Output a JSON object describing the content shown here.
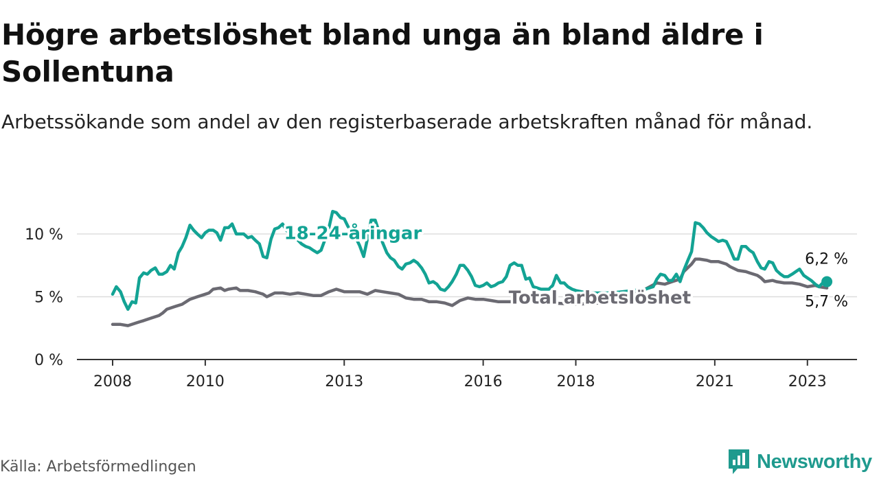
{
  "header": {
    "title": "Högre arbetslöshet bland unga än bland äldre i Sollentuna",
    "subtitle": "Arbetssökande som andel av den registerbaserade arbetskraften månad för månad."
  },
  "footer": {
    "source": "Källa: Arbetsförmedlingen",
    "brand": "Newsworthy"
  },
  "colors": {
    "youth": "#13a394",
    "total": "#6b6a72",
    "grid": "#dddddd",
    "axis": "#333333",
    "brand": "#1f9a8e"
  },
  "chart_data": {
    "type": "line",
    "title": "Högre arbetslöshet bland unga än bland äldre i Sollentuna",
    "xlabel": "",
    "ylabel": "",
    "ylim": [
      0,
      12
    ],
    "xlim": [
      2008.0,
      2023.3
    ],
    "yticks": [
      0,
      5,
      10
    ],
    "ytick_labels": [
      "0 %",
      "5 %",
      "10 %"
    ],
    "xticks": [
      2008,
      2010,
      2013,
      2016,
      2018,
      2021,
      2023
    ],
    "xtick_labels": [
      "2008",
      "2010",
      "2013",
      "2016",
      "2018",
      "2021",
      "2023"
    ],
    "grid": true,
    "series": [
      {
        "name": "18-24-åringar",
        "color": "#13a394",
        "label_position": [
          2011.7,
          9.6
        ],
        "end_label": "6,2 %",
        "points": [
          [
            2008.0,
            5.2
          ],
          [
            2008.08,
            5.8
          ],
          [
            2008.17,
            5.4
          ],
          [
            2008.25,
            4.6
          ],
          [
            2008.33,
            4.0
          ],
          [
            2008.42,
            4.6
          ],
          [
            2008.5,
            4.5
          ],
          [
            2008.58,
            6.5
          ],
          [
            2008.67,
            6.9
          ],
          [
            2008.75,
            6.8
          ],
          [
            2008.83,
            7.1
          ],
          [
            2008.92,
            7.3
          ],
          [
            2009.0,
            6.8
          ],
          [
            2009.08,
            6.8
          ],
          [
            2009.17,
            7.0
          ],
          [
            2009.25,
            7.5
          ],
          [
            2009.33,
            7.2
          ],
          [
            2009.42,
            8.5
          ],
          [
            2009.5,
            9.0
          ],
          [
            2009.58,
            9.7
          ],
          [
            2009.67,
            10.7
          ],
          [
            2009.75,
            10.3
          ],
          [
            2009.83,
            10.0
          ],
          [
            2009.92,
            9.7
          ],
          [
            2010.0,
            10.1
          ],
          [
            2010.08,
            10.3
          ],
          [
            2010.17,
            10.3
          ],
          [
            2010.25,
            10.1
          ],
          [
            2010.33,
            9.5
          ],
          [
            2010.42,
            10.5
          ],
          [
            2010.5,
            10.5
          ],
          [
            2010.58,
            10.8
          ],
          [
            2010.67,
            10.0
          ],
          [
            2010.75,
            10.0
          ],
          [
            2010.83,
            10.0
          ],
          [
            2010.92,
            9.7
          ],
          [
            2011.0,
            9.8
          ],
          [
            2011.08,
            9.5
          ],
          [
            2011.17,
            9.2
          ],
          [
            2011.25,
            8.2
          ],
          [
            2011.33,
            8.1
          ],
          [
            2011.42,
            9.6
          ],
          [
            2011.5,
            10.4
          ],
          [
            2011.58,
            10.5
          ],
          [
            2011.67,
            10.8
          ],
          [
            2011.75,
            10.3
          ],
          [
            2011.83,
            10.0
          ],
          [
            2011.92,
            9.7
          ],
          [
            2012.0,
            9.5
          ],
          [
            2012.08,
            9.2
          ],
          [
            2012.17,
            9.0
          ],
          [
            2012.25,
            8.9
          ],
          [
            2012.33,
            8.7
          ],
          [
            2012.42,
            8.5
          ],
          [
            2012.5,
            8.7
          ],
          [
            2012.58,
            9.5
          ],
          [
            2012.67,
            10.5
          ],
          [
            2012.75,
            11.8
          ],
          [
            2012.83,
            11.7
          ],
          [
            2012.92,
            11.3
          ],
          [
            2013.0,
            11.2
          ],
          [
            2013.08,
            10.6
          ],
          [
            2013.17,
            10.2
          ],
          [
            2013.25,
            9.7
          ],
          [
            2013.33,
            9.1
          ],
          [
            2013.42,
            8.2
          ],
          [
            2013.5,
            9.6
          ],
          [
            2013.58,
            11.1
          ],
          [
            2013.67,
            11.1
          ],
          [
            2013.75,
            10.2
          ],
          [
            2013.83,
            9.3
          ],
          [
            2013.92,
            8.5
          ],
          [
            2014.0,
            8.1
          ],
          [
            2014.08,
            7.9
          ],
          [
            2014.17,
            7.4
          ],
          [
            2014.25,
            7.2
          ],
          [
            2014.33,
            7.6
          ],
          [
            2014.42,
            7.7
          ],
          [
            2014.5,
            7.9
          ],
          [
            2014.58,
            7.7
          ],
          [
            2014.67,
            7.3
          ],
          [
            2014.75,
            6.8
          ],
          [
            2014.83,
            6.1
          ],
          [
            2014.92,
            6.2
          ],
          [
            2015.0,
            6.0
          ],
          [
            2015.08,
            5.6
          ],
          [
            2015.17,
            5.5
          ],
          [
            2015.25,
            5.8
          ],
          [
            2015.33,
            6.2
          ],
          [
            2015.42,
            6.8
          ],
          [
            2015.5,
            7.5
          ],
          [
            2015.58,
            7.5
          ],
          [
            2015.67,
            7.1
          ],
          [
            2015.75,
            6.6
          ],
          [
            2015.83,
            5.9
          ],
          [
            2015.92,
            5.8
          ],
          [
            2016.0,
            5.9
          ],
          [
            2016.08,
            6.1
          ],
          [
            2016.17,
            5.8
          ],
          [
            2016.25,
            5.9
          ],
          [
            2016.33,
            6.1
          ],
          [
            2016.42,
            6.2
          ],
          [
            2016.5,
            6.6
          ],
          [
            2016.58,
            7.5
          ],
          [
            2016.67,
            7.7
          ],
          [
            2016.75,
            7.5
          ],
          [
            2016.83,
            7.5
          ],
          [
            2016.92,
            6.4
          ],
          [
            2017.0,
            6.5
          ],
          [
            2017.08,
            5.8
          ],
          [
            2017.17,
            5.7
          ],
          [
            2017.25,
            5.6
          ],
          [
            2017.33,
            5.6
          ],
          [
            2017.42,
            5.6
          ],
          [
            2017.5,
            5.9
          ],
          [
            2017.58,
            6.7
          ],
          [
            2017.67,
            6.1
          ],
          [
            2017.75,
            6.1
          ],
          [
            2017.83,
            5.8
          ],
          [
            2017.92,
            5.6
          ],
          [
            2018.0,
            5.5
          ],
          [
            2018.25,
            5.3
          ],
          [
            2018.5,
            5.3
          ],
          [
            2018.75,
            5.3
          ],
          [
            2019.0,
            5.4
          ],
          [
            2019.25,
            5.5
          ],
          [
            2019.5,
            5.6
          ],
          [
            2019.67,
            5.8
          ],
          [
            2019.75,
            6.4
          ],
          [
            2019.83,
            6.8
          ],
          [
            2019.92,
            6.7
          ],
          [
            2020.0,
            6.3
          ],
          [
            2020.08,
            6.3
          ],
          [
            2020.17,
            6.8
          ],
          [
            2020.25,
            6.2
          ],
          [
            2020.33,
            7.1
          ],
          [
            2020.42,
            7.9
          ],
          [
            2020.5,
            8.6
          ],
          [
            2020.58,
            10.9
          ],
          [
            2020.67,
            10.8
          ],
          [
            2020.75,
            10.5
          ],
          [
            2020.83,
            10.1
          ],
          [
            2020.92,
            9.8
          ],
          [
            2021.0,
            9.6
          ],
          [
            2021.08,
            9.4
          ],
          [
            2021.17,
            9.5
          ],
          [
            2021.25,
            9.4
          ],
          [
            2021.33,
            8.8
          ],
          [
            2021.42,
            8.0
          ],
          [
            2021.5,
            8.0
          ],
          [
            2021.58,
            9.0
          ],
          [
            2021.67,
            9.0
          ],
          [
            2021.75,
            8.7
          ],
          [
            2021.83,
            8.5
          ],
          [
            2021.92,
            7.8
          ],
          [
            2022.0,
            7.3
          ],
          [
            2022.08,
            7.2
          ],
          [
            2022.17,
            7.8
          ],
          [
            2022.25,
            7.7
          ],
          [
            2022.33,
            7.1
          ],
          [
            2022.42,
            6.8
          ],
          [
            2022.5,
            6.6
          ],
          [
            2022.58,
            6.6
          ],
          [
            2022.67,
            6.8
          ],
          [
            2022.75,
            7.0
          ],
          [
            2022.83,
            7.2
          ],
          [
            2022.92,
            6.7
          ],
          [
            2023.0,
            6.5
          ],
          [
            2023.08,
            6.3
          ],
          [
            2023.17,
            6.0
          ],
          [
            2023.25,
            5.8
          ],
          [
            2023.33,
            6.1
          ],
          [
            2023.42,
            6.2
          ]
        ]
      },
      {
        "name": "Total arbetslöshet",
        "color": "#6b6a72",
        "label_position": [
          2016.55,
          4.45
        ],
        "end_label": "5,7 %",
        "points": [
          [
            2008.0,
            2.8
          ],
          [
            2008.17,
            2.8
          ],
          [
            2008.33,
            2.7
          ],
          [
            2008.5,
            2.9
          ],
          [
            2008.58,
            3.0
          ],
          [
            2008.67,
            3.1
          ],
          [
            2008.83,
            3.3
          ],
          [
            2009.0,
            3.5
          ],
          [
            2009.08,
            3.7
          ],
          [
            2009.17,
            4.0
          ],
          [
            2009.33,
            4.2
          ],
          [
            2009.5,
            4.4
          ],
          [
            2009.67,
            4.8
          ],
          [
            2009.83,
            5.0
          ],
          [
            2010.0,
            5.2
          ],
          [
            2010.08,
            5.3
          ],
          [
            2010.17,
            5.6
          ],
          [
            2010.33,
            5.7
          ],
          [
            2010.42,
            5.5
          ],
          [
            2010.5,
            5.6
          ],
          [
            2010.67,
            5.7
          ],
          [
            2010.75,
            5.5
          ],
          [
            2010.92,
            5.5
          ],
          [
            2011.08,
            5.4
          ],
          [
            2011.25,
            5.2
          ],
          [
            2011.33,
            5.0
          ],
          [
            2011.5,
            5.3
          ],
          [
            2011.67,
            5.3
          ],
          [
            2011.83,
            5.2
          ],
          [
            2012.0,
            5.3
          ],
          [
            2012.17,
            5.2
          ],
          [
            2012.33,
            5.1
          ],
          [
            2012.5,
            5.1
          ],
          [
            2012.67,
            5.4
          ],
          [
            2012.83,
            5.6
          ],
          [
            2013.0,
            5.4
          ],
          [
            2013.17,
            5.4
          ],
          [
            2013.33,
            5.4
          ],
          [
            2013.5,
            5.2
          ],
          [
            2013.67,
            5.5
          ],
          [
            2013.83,
            5.4
          ],
          [
            2014.0,
            5.3
          ],
          [
            2014.17,
            5.2
          ],
          [
            2014.33,
            4.9
          ],
          [
            2014.5,
            4.8
          ],
          [
            2014.67,
            4.8
          ],
          [
            2014.83,
            4.6
          ],
          [
            2015.0,
            4.6
          ],
          [
            2015.17,
            4.5
          ],
          [
            2015.33,
            4.3
          ],
          [
            2015.5,
            4.7
          ],
          [
            2015.67,
            4.9
          ],
          [
            2015.83,
            4.8
          ],
          [
            2016.0,
            4.8
          ],
          [
            2016.17,
            4.7
          ],
          [
            2016.33,
            4.6
          ],
          [
            2016.5,
            4.6
          ],
          [
            2016.75,
            4.6
          ],
          [
            2017.0,
            4.6
          ],
          [
            2017.5,
            4.5
          ],
          [
            2018.0,
            4.4
          ],
          [
            2018.5,
            4.5
          ],
          [
            2019.0,
            4.9
          ],
          [
            2019.5,
            5.6
          ],
          [
            2019.75,
            6.1
          ],
          [
            2019.92,
            6.0
          ],
          [
            2020.08,
            6.2
          ],
          [
            2020.25,
            6.4
          ],
          [
            2020.33,
            7.0
          ],
          [
            2020.5,
            7.6
          ],
          [
            2020.58,
            8.0
          ],
          [
            2020.67,
            8.0
          ],
          [
            2020.83,
            7.9
          ],
          [
            2020.92,
            7.8
          ],
          [
            2021.08,
            7.8
          ],
          [
            2021.25,
            7.6
          ],
          [
            2021.33,
            7.4
          ],
          [
            2021.5,
            7.1
          ],
          [
            2021.67,
            7.0
          ],
          [
            2021.75,
            6.9
          ],
          [
            2021.92,
            6.7
          ],
          [
            2022.0,
            6.5
          ],
          [
            2022.08,
            6.2
          ],
          [
            2022.25,
            6.3
          ],
          [
            2022.33,
            6.2
          ],
          [
            2022.5,
            6.1
          ],
          [
            2022.67,
            6.1
          ],
          [
            2022.83,
            6.0
          ],
          [
            2023.0,
            5.8
          ],
          [
            2023.17,
            5.9
          ],
          [
            2023.25,
            5.8
          ],
          [
            2023.42,
            5.7
          ]
        ]
      }
    ]
  }
}
